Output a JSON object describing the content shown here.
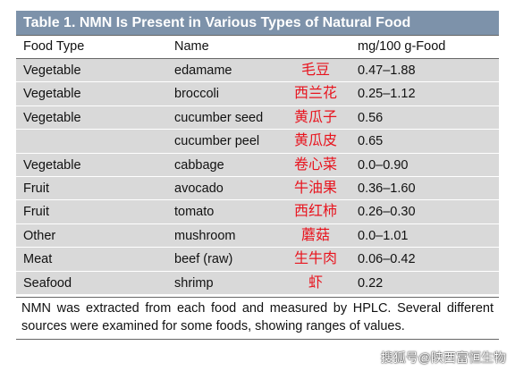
{
  "table": {
    "title": "Table 1.  NMN Is Present in Various Types of Natural Food",
    "header": [
      "Food Type",
      "Name",
      "mg/100 g-Food"
    ],
    "rows": [
      {
        "type": "Vegetable",
        "name": "edamame",
        "chinese": "毛豆",
        "value": "0.47–1.88"
      },
      {
        "type": "Vegetable",
        "name": "broccoli",
        "chinese": "西兰花",
        "value": "0.25–1.12"
      },
      {
        "type": "Vegetable",
        "name": "cucumber seed",
        "chinese": "黄瓜子",
        "value": "0.56"
      },
      {
        "name": "cucumber peel",
        "chinese": "黄瓜皮",
        "value": "0.65"
      },
      {
        "type": "Vegetable",
        "name": "cabbage",
        "chinese": "卷心菜",
        "value": "0.0–0.90"
      },
      {
        "type": "Fruit",
        "name": "avocado",
        "chinese": "牛油果",
        "value": "0.36–1.60"
      },
      {
        "type": "Fruit",
        "name": "tomato",
        "chinese": "西红柿",
        "value": "0.26–0.30"
      },
      {
        "type": "Other",
        "name": "mushroom",
        "chinese": "蘑菇",
        "value": "0.0–1.01"
      },
      {
        "type": "Meat",
        "name": "beef (raw)",
        "chinese": "生牛肉",
        "value": "0.06–0.42"
      },
      {
        "type": "Seafood",
        "name": "shrimp",
        "chinese": "虾",
        "value": "0.22"
      }
    ],
    "footnote": "NMN was extracted from each food and measured by HPLC. Several different sources were examined for some foods, showing ranges of values."
  },
  "watermark": "搜狐号@陕西富恒生物"
}
